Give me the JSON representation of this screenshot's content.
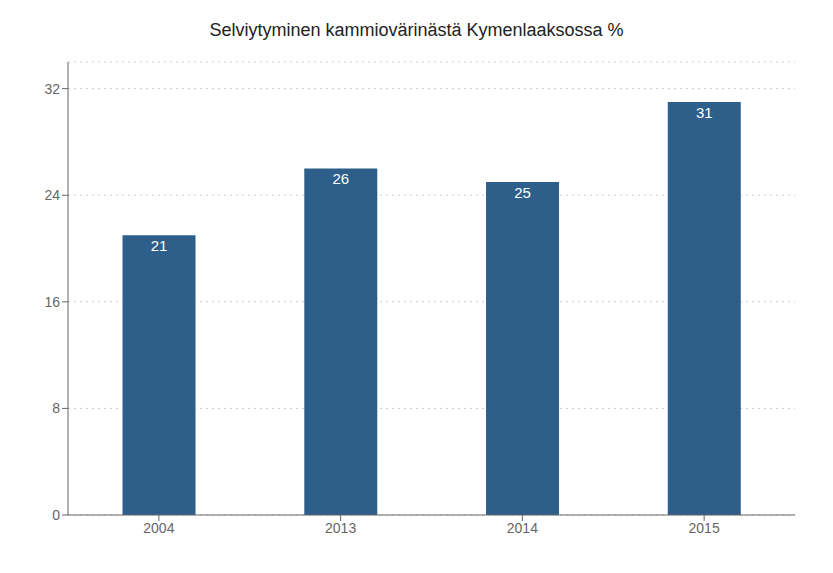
{
  "chart_data": {
    "type": "bar",
    "title": "Selviytyminen kammiovärinästä Kymenlaaksossa %",
    "categories": [
      "2004",
      "2013",
      "2014",
      "2015"
    ],
    "values": [
      21,
      26,
      25,
      31
    ],
    "color": "#2d5f8a",
    "ylim": [
      0,
      34
    ],
    "yticks": [
      0,
      8,
      16,
      24,
      32
    ],
    "grid": true,
    "data_labels": true
  }
}
